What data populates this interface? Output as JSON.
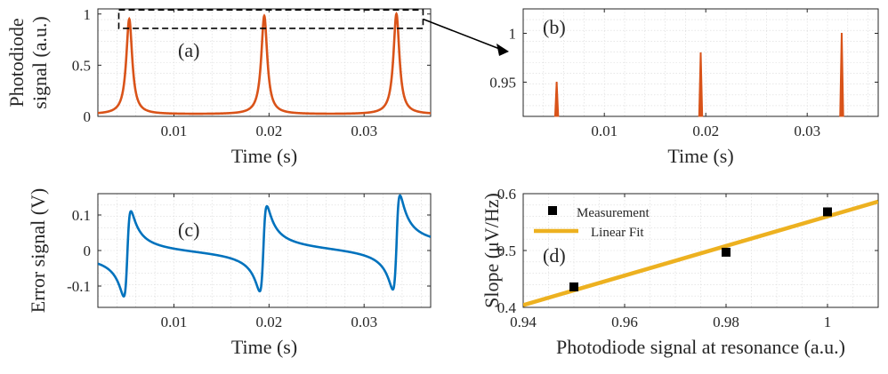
{
  "chart_data": [
    {
      "panel": "(a)",
      "type": "line",
      "xlabel": "Time (s)",
      "ylabel_lines": [
        "Photodiode",
        "signal (a.u.)"
      ],
      "xlim": [
        0.002,
        0.037
      ],
      "ylim": [
        0,
        1.05
      ],
      "xticks": [
        0.01,
        0.02,
        0.03
      ],
      "xtick_labels": [
        "0.01",
        "0.02",
        "0.03"
      ],
      "yticks": [
        0,
        0.5,
        1
      ],
      "ytick_labels": [
        "0",
        "0.5",
        "1"
      ],
      "grid": true,
      "color": "#d95319",
      "baseline": 0.02,
      "peaks": [
        {
          "x": 0.0053,
          "y": 0.95
        },
        {
          "x": 0.0195,
          "y": 0.98
        },
        {
          "x": 0.0334,
          "y": 1.0
        }
      ],
      "annotation": "dashed zoom box around peak tops (y 0.86–1.04), arrow pointing to panel (b)"
    },
    {
      "panel": "(b)",
      "type": "line",
      "xlabel": "Time (s)",
      "xlim": [
        0.002,
        0.037
      ],
      "ylim": [
        0.915,
        1.025
      ],
      "xticks": [
        0.01,
        0.02,
        0.03
      ],
      "xtick_labels": [
        "0.01",
        "0.02",
        "0.03"
      ],
      "yticks": [
        0.95,
        1
      ],
      "ytick_labels": [
        "0.95",
        "1"
      ],
      "grid": true,
      "color": "#d95319",
      "peaks": [
        {
          "x": 0.0053,
          "y": 0.95
        },
        {
          "x": 0.0195,
          "y": 0.98
        },
        {
          "x": 0.0334,
          "y": 1.0
        }
      ]
    },
    {
      "panel": "(c)",
      "type": "line",
      "xlabel": "Time (s)",
      "ylabel": "Error signal (V)",
      "xlim": [
        0.002,
        0.037
      ],
      "ylim": [
        -0.16,
        0.16
      ],
      "xticks": [
        0.01,
        0.02,
        0.03
      ],
      "xtick_labels": [
        "0.01",
        "0.02",
        "0.03"
      ],
      "yticks": [
        -0.1,
        0,
        0.1
      ],
      "ytick_labels": [
        "-0.1",
        "0",
        "0.1"
      ],
      "grid": true,
      "color": "#0072bd",
      "dispersive_features": [
        {
          "x_center": 0.0051,
          "min": -0.12,
          "max": 0.12
        },
        {
          "x_center": 0.0194,
          "min": -0.115,
          "max": 0.125
        },
        {
          "x_center": 0.0334,
          "min": -0.12,
          "max": 0.145
        }
      ]
    },
    {
      "panel": "(d)",
      "type": "scatter",
      "xlabel": "Photodiode signal at resonance (a.u.)",
      "ylabel": "Slope (μV/Hz)",
      "xlim": [
        0.94,
        1.01
      ],
      "ylim": [
        0.4,
        0.6
      ],
      "xticks": [
        0.94,
        0.96,
        0.98,
        1
      ],
      "xtick_labels": [
        "0.94",
        "0.96",
        "0.98",
        "1"
      ],
      "yticks": [
        0.4,
        0.5,
        0.6
      ],
      "ytick_labels": [
        "0.4",
        "0.5",
        "0.6"
      ],
      "grid": true,
      "legend_position": "top-left",
      "series": [
        {
          "name": "Measurement",
          "kind": "markers",
          "color": "#000000",
          "x": [
            0.95,
            0.98,
            1.0
          ],
          "y": [
            0.436,
            0.497,
            0.568
          ]
        },
        {
          "name": "Linear Fit",
          "kind": "line",
          "color": "#edb120",
          "x": [
            0.94,
            1.01
          ],
          "y": [
            0.404,
            0.586
          ]
        }
      ]
    }
  ]
}
